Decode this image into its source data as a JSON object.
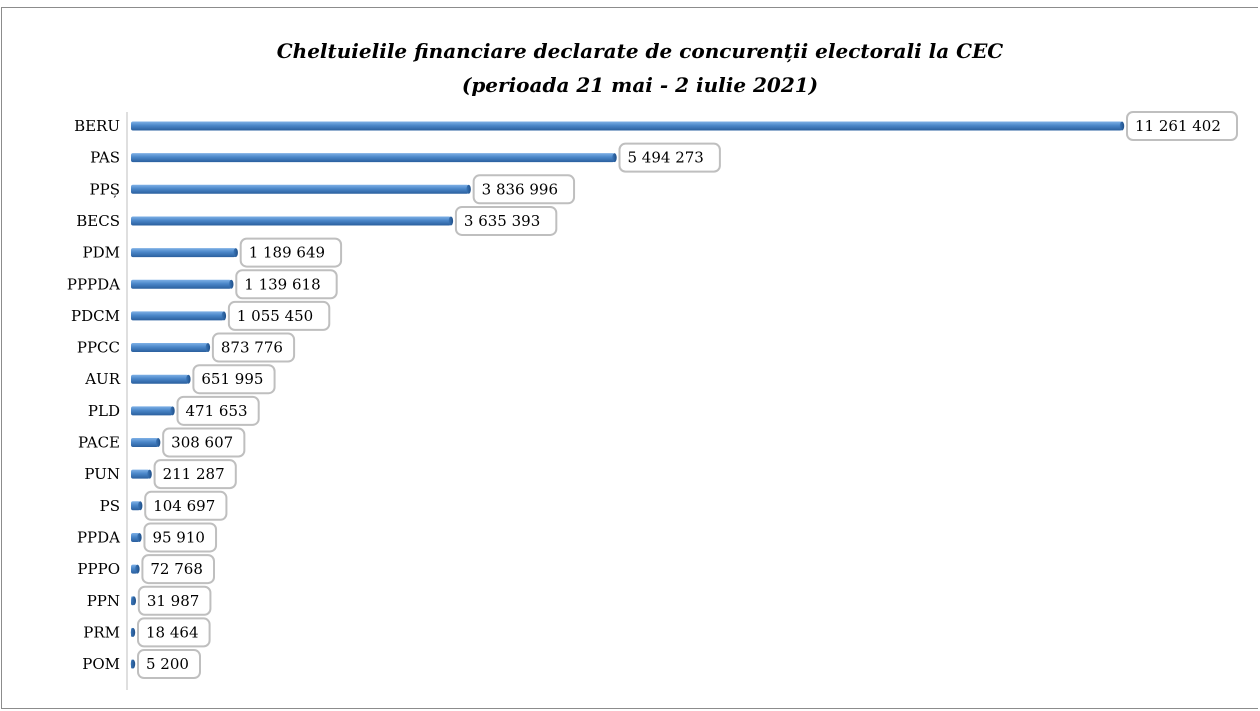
{
  "chart_data": {
    "type": "bar",
    "orientation": "horizontal",
    "title": "Cheltuielile financiare declarate de concurenții electorali la CEC",
    "subtitle": "(perioada 21 mai - 2 iulie 2021)",
    "categories": [
      "BERU",
      "PAS",
      "PPȘ",
      "BECS",
      "PDM",
      "PPPDA",
      "PDCM",
      "PPCC",
      "AUR",
      "PLD",
      "PACE",
      "PUN",
      "PS",
      "PPDA",
      "PPPO",
      "PPN",
      "PRM",
      "POM"
    ],
    "values": [
      11261402,
      5494273,
      3836996,
      3635393,
      1189649,
      1139618,
      1055450,
      873776,
      651995,
      471653,
      308607,
      211287,
      104697,
      95910,
      72768,
      31987,
      18464,
      5200
    ],
    "value_labels": [
      "11 261 402",
      "5 494 273",
      "3 836 996",
      "3 635 393",
      "1 189 649",
      "1 139 618",
      "1 055 450",
      "873 776",
      "651 995",
      "471 653",
      "308 607",
      "211 287",
      "104 697",
      "95 910",
      "72 768",
      "31 987",
      "18 464",
      "5 200"
    ],
    "xlabel": "",
    "ylabel": "",
    "grid": false,
    "legend": "none",
    "bar_color": "#4a86c8"
  }
}
